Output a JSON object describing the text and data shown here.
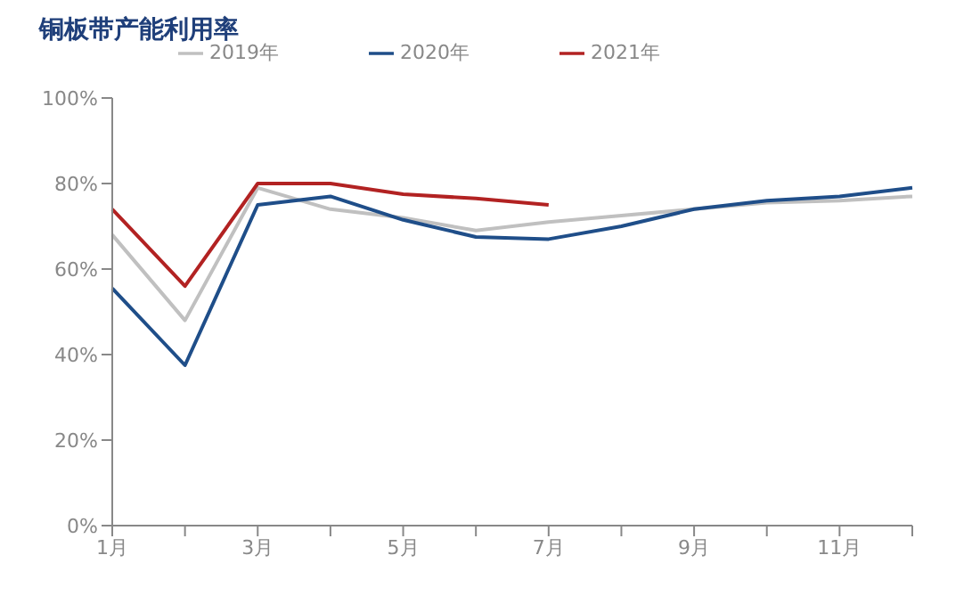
{
  "chart_data": {
    "type": "line",
    "title": "铜板带产能利用率",
    "categories": [
      "1月",
      null,
      "3月",
      null,
      "5月",
      null,
      "7月",
      null,
      "9月",
      null,
      "11月",
      null
    ],
    "series": [
      {
        "name": "2019年",
        "color": "#c0c0c0",
        "values": [
          68,
          48,
          79,
          74,
          72,
          69,
          71,
          72.5,
          74,
          75.5,
          76,
          77
        ]
      },
      {
        "name": "2020年",
        "color": "#1f4e89",
        "values": [
          55.5,
          37.5,
          75,
          77,
          71.5,
          67.5,
          67,
          70,
          74,
          76,
          77,
          79
        ]
      },
      {
        "name": "2021年",
        "color": "#b22222",
        "values": [
          74,
          56,
          80,
          80,
          77.5,
          76.5,
          75,
          null,
          null,
          null,
          null,
          null
        ]
      }
    ],
    "ylim": [
      0,
      100
    ],
    "yticks": [
      {
        "value": 0,
        "label": "0%"
      },
      {
        "value": 20,
        "label": "20%"
      },
      {
        "value": 40,
        "label": "40%"
      },
      {
        "value": 60,
        "label": "60%"
      },
      {
        "value": 80,
        "label": "80%"
      },
      {
        "value": 100,
        "label": "100%"
      }
    ],
    "grid": false,
    "legend": "top",
    "marker": "none",
    "line_style": "solid"
  }
}
